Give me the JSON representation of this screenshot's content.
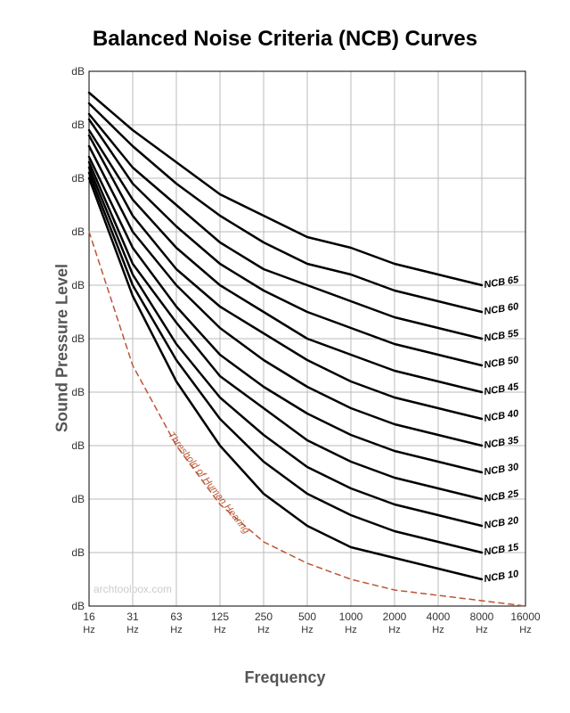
{
  "chart": {
    "type": "line",
    "title": "Balanced Noise Criteria (NCB) Curves",
    "xlabel": "Frequency",
    "ylabel": "Sound Pressure Level",
    "background_color": "#ffffff",
    "grid_color": "#bbbbbb",
    "axis_color": "#000000",
    "curve_color": "#000000",
    "curve_width": 2.5,
    "threshold_color": "#bb5533",
    "threshold_dash": "6 5",
    "title_fontsize": 24,
    "label_fontsize": 18,
    "tick_fontsize": 12,
    "series_label_fontsize": 11,
    "watermark": "archtoolbox.com",
    "x_scale": "log",
    "x_categories": [
      "16",
      "31",
      "63",
      "125",
      "250",
      "500",
      "1000",
      "2000",
      "4000",
      "8000",
      "16000"
    ],
    "x_unit": "Hz",
    "ylim": [
      0,
      100
    ],
    "ytick_step": 10,
    "y_unit": "dB",
    "series": [
      {
        "label": "NCB 10",
        "values": [
          80,
          58,
          42,
          30,
          21,
          15,
          11,
          9,
          7,
          5,
          null
        ]
      },
      {
        "label": "NCB 15",
        "values": [
          81,
          60,
          46,
          35,
          27,
          21,
          17,
          14,
          12,
          10,
          null
        ]
      },
      {
        "label": "NCB 20",
        "values": [
          82,
          62,
          49,
          39,
          32,
          26,
          22,
          19,
          17,
          15,
          null
        ]
      },
      {
        "label": "NCB 25",
        "values": [
          83,
          64,
          53,
          43,
          37,
          31,
          27,
          24,
          22,
          20,
          null
        ]
      },
      {
        "label": "NCB 30",
        "values": [
          84,
          67,
          56,
          47,
          41,
          36,
          32,
          29,
          27,
          25,
          null
        ]
      },
      {
        "label": "NCB 35",
        "values": [
          86,
          70,
          60,
          52,
          46,
          41,
          37,
          34,
          32,
          30,
          null
        ]
      },
      {
        "label": "NCB 40",
        "values": [
          88,
          73,
          63,
          56,
          51,
          46,
          42,
          39,
          37,
          35,
          null
        ]
      },
      {
        "label": "NCB 45",
        "values": [
          89,
          76,
          67,
          60,
          55,
          50,
          47,
          44,
          42,
          40,
          null
        ]
      },
      {
        "label": "NCB 50",
        "values": [
          91,
          79,
          71,
          64,
          59,
          55,
          52,
          49,
          47,
          45,
          null
        ]
      },
      {
        "label": "NCB 55",
        "values": [
          92,
          82,
          75,
          68,
          63,
          60,
          57,
          54,
          52,
          50,
          null
        ]
      },
      {
        "label": "NCB 60",
        "values": [
          94,
          86,
          79,
          73,
          68,
          64,
          62,
          59,
          57,
          55,
          null
        ]
      },
      {
        "label": "NCB 65",
        "values": [
          96,
          89,
          83,
          77,
          73,
          69,
          67,
          64,
          62,
          60,
          null
        ]
      }
    ],
    "threshold": {
      "label": "Threshold of Human Hearing",
      "values": [
        70,
        45,
        30,
        19,
        12,
        8,
        5,
        3,
        2,
        1,
        0
      ]
    }
  }
}
